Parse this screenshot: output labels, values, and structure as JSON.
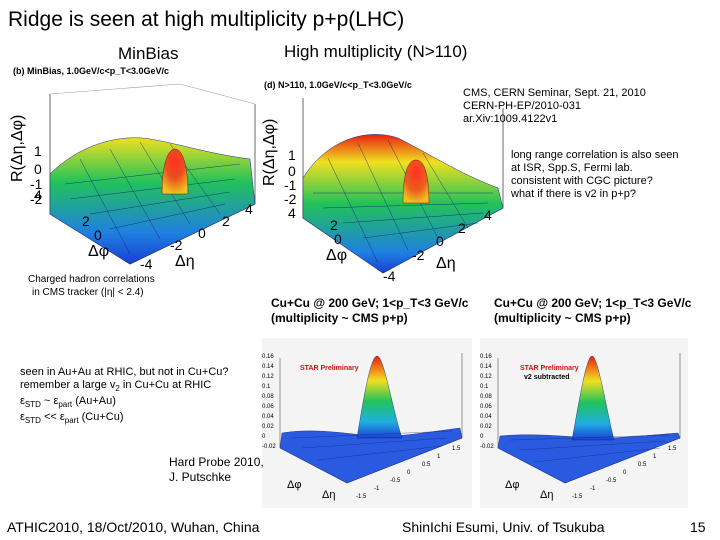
{
  "slide": {
    "title": "Ridge is seen at high multiplicity p+p(LHC)",
    "page_number": "15"
  },
  "left_plot": {
    "heading": "MinBias",
    "subtitle": "(b) MinBias, 1.0GeV/c<p_T<3.0GeV/c",
    "z_axis_label": "R(Δη,Δφ)",
    "z_ticks": [
      "1",
      "0",
      "-1",
      "-2",
      "4"
    ],
    "phi_label": "Δφ",
    "phi_ticks": [
      "2",
      "0"
    ],
    "eta_label": "Δη",
    "eta_ticks": [
      "4",
      "2",
      "0",
      "-2",
      "-4"
    ],
    "caption_line1": "Charged hadron correlations",
    "caption_line2": "in CMS tracker (|η| < 2.4)"
  },
  "right_plot": {
    "heading": "High multiplicity (N>110)",
    "subtitle": "(d) N>110, 1.0GeV/c<p_T<3.0GeV/c",
    "z_axis_label": "R(Δη,Δφ)",
    "z_ticks": [
      "1",
      "0",
      "-1",
      "-2",
      "4"
    ],
    "phi_label": "Δφ",
    "phi_ticks": [
      "2",
      "0"
    ],
    "eta_label": "Δη",
    "eta_ticks": [
      "4",
      "2",
      "0",
      "-2",
      "-4"
    ]
  },
  "cms_reference": {
    "line1": "CMS, CERN Seminar, Sept. 21, 2010",
    "line2": "CERN-PH-EP/2010-031",
    "line3": "ar.Xiv:1009.4122v1"
  },
  "ridge_note": {
    "line1": "long range correlation is also seen",
    "line2": "at ISR, Spp.S, Fermi lab.",
    "line3": "consistent with CGC picture?",
    "line4": "what if there is v2 in p+p?"
  },
  "star_left": {
    "heading_line1": "Cu+Cu @ 200 GeV; 1<p_T<3 GeV/c",
    "heading_line2": "(multiplicity ~ CMS p+p)",
    "label": "STAR Preliminary",
    "z_ticks": [
      "0.16",
      "0.14",
      "0.12",
      "0.1",
      "0.08",
      "0.06",
      "0.04",
      "0.02",
      "0",
      "-0.02"
    ],
    "phi_label": "Δφ",
    "eta_label": "Δη",
    "eta_ticks": [
      "1.5",
      "1",
      "0.5",
      "0",
      "-0.5",
      "-1",
      "-1.5"
    ]
  },
  "star_right": {
    "heading_line1": "Cu+Cu @ 200 GeV; 1<p_T<3 GeV/c",
    "heading_line2": "(multiplicity ~ CMS p+p)",
    "label_line1": "STAR Preliminary",
    "label_line2": "v2 subtracted",
    "z_ticks": [
      "0.16",
      "0.14",
      "0.12",
      "0.1",
      "0.08",
      "0.06",
      "0.04",
      "0.02",
      "0",
      "-0.02"
    ],
    "phi_label": "Δφ",
    "eta_label": "Δη",
    "eta_ticks": [
      "1.5",
      "1",
      "0.5",
      "0",
      "-0.5",
      "-1",
      "-1.5"
    ]
  },
  "auau_note": {
    "line1": "seen in Au+Au at RHIC, but not in Cu+Cu?",
    "line2_a": "remember a large v",
    "line2_sub": "2",
    "line2_b": " in Cu+Cu at RHIC",
    "line3_eps": "ε",
    "line3_sub": "STD",
    "line3_mid": "  ~  ε",
    "line3_sub2": "part",
    "line3_end": " (Au+Au)",
    "line4_eps": "ε",
    "line4_sub": "STD",
    "line4_mid": "  << ε",
    "line4_sub2": "part",
    "line4_end": " (Cu+Cu)"
  },
  "hard_probe_ref": {
    "line1": "Hard Probe 2010,",
    "line2": "J. Putschke"
  },
  "footer": {
    "left": "ATHIC2010, 18/Oct/2010, Wuhan, China",
    "center": "ShinIchi Esumi, Univ. of Tsukuba",
    "right": "15"
  },
  "colors": {
    "surface_low": "#1a3fd6",
    "surface_mid": "#22c25a",
    "surface_high": "#f0e020",
    "surface_peak": "#e8201a"
  }
}
